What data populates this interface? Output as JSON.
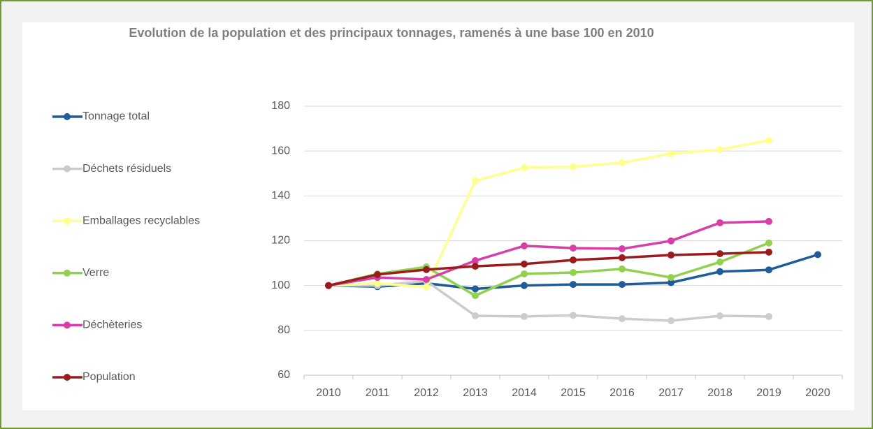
{
  "chart_data": {
    "type": "line",
    "title": "Evolution de la population et des principaux tonnages, ramenés à une base 100 en 2010",
    "categories": [
      "2010",
      "2011",
      "2012",
      "2013",
      "2014",
      "2015",
      "2016",
      "2017",
      "2018",
      "2019",
      "2020"
    ],
    "series": [
      {
        "name": "Tonnage total",
        "color": "#1f5c99",
        "values": [
          100,
          99.5,
          101,
          98.5,
          100,
          100.5,
          100.5,
          101.3,
          106.2,
          107,
          113.8
        ]
      },
      {
        "name": "Déchets résiduels",
        "color": "#cccccc",
        "values": [
          100,
          100,
          102,
          86.5,
          86.2,
          86.7,
          85.2,
          84.3,
          86.5,
          86.2,
          null
        ]
      },
      {
        "name": "Emballages recyclables",
        "color": "#ffff8f",
        "values": [
          100,
          101,
          99.3,
          146.7,
          152.6,
          153,
          154.8,
          158.8,
          160.7,
          164.7,
          null
        ]
      },
      {
        "name": "Verre",
        "color": "#92d050",
        "values": [
          100,
          105.2,
          108.3,
          95.5,
          105.2,
          105.8,
          107.4,
          103.6,
          110.5,
          119,
          null
        ]
      },
      {
        "name": "Déchèteries",
        "color": "#d63fa8",
        "values": [
          100,
          103.6,
          102.7,
          111.1,
          117.7,
          116.7,
          116.4,
          119.9,
          128,
          128.6,
          null
        ]
      },
      {
        "name": "Population",
        "color": "#9b1c1c",
        "values": [
          100,
          104.9,
          107.1,
          108.6,
          109.6,
          111.4,
          112.4,
          113.6,
          114.2,
          114.9,
          null
        ]
      }
    ],
    "ylim": [
      60,
      180
    ],
    "yticks": [
      60,
      80,
      100,
      120,
      140,
      160,
      180
    ],
    "grid": true,
    "legend": "left"
  }
}
